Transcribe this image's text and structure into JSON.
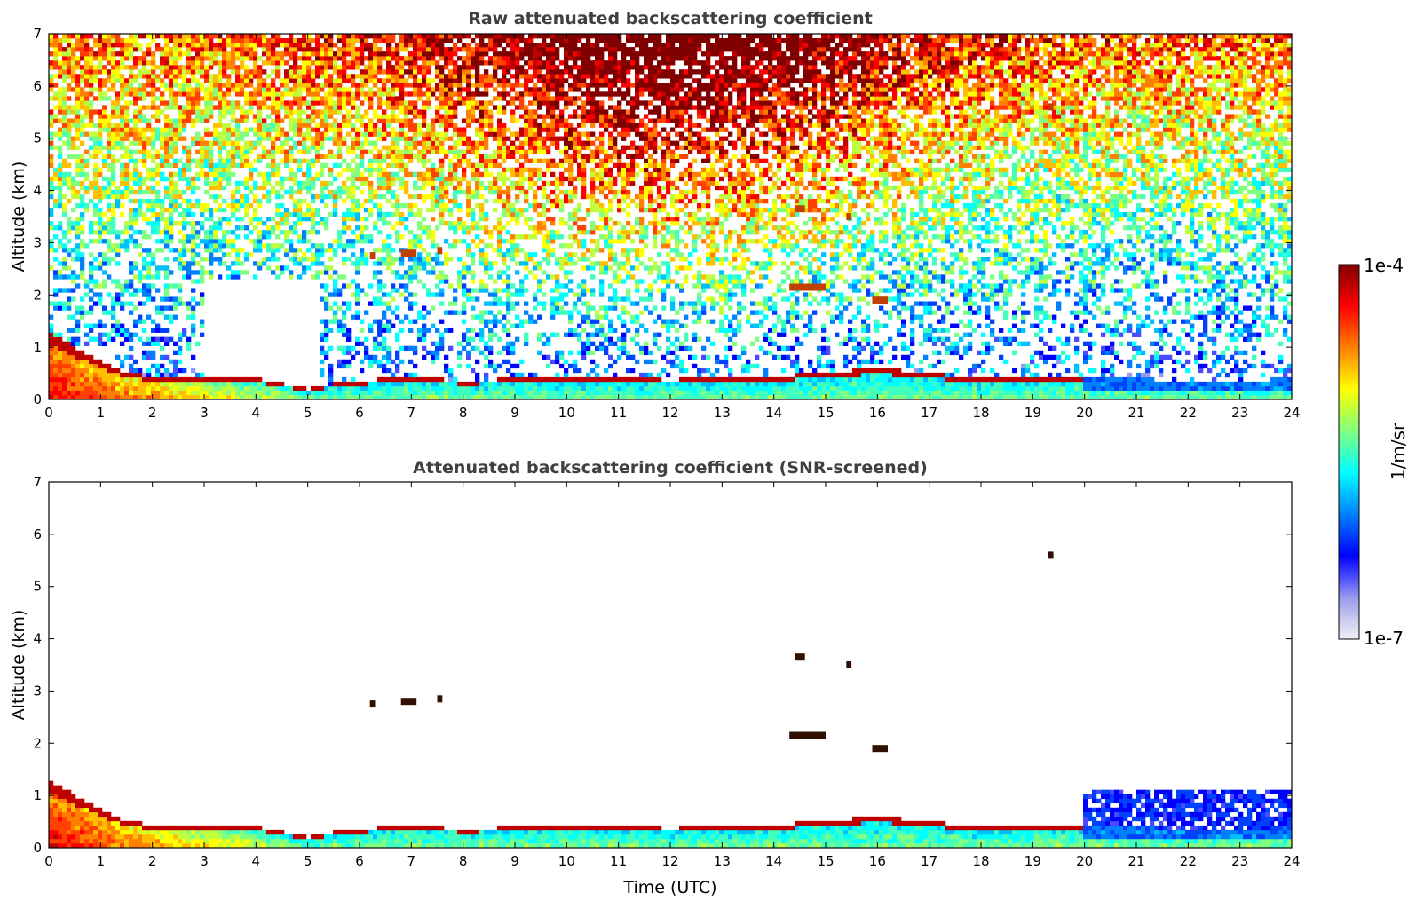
{
  "colors": {
    "colormap": [
      "#eeeef8",
      "#c8c8ee",
      "#9a9aee",
      "#4a4aff",
      "#0000ff",
      "#0040ff",
      "#0080ff",
      "#00bfff",
      "#00ffff",
      "#40ffbf",
      "#80ff80",
      "#bfff40",
      "#ffff00",
      "#ffbf00",
      "#ff8000",
      "#ff4000",
      "#ff0000",
      "#bf0000",
      "#800000"
    ],
    "tick": "#000000",
    "title": "#404040"
  },
  "colorbar": {
    "max_label": "1e-4",
    "min_label": "1e-7",
    "unit_label": "1/m/sr",
    "scale": "log"
  },
  "chart_data": [
    {
      "type": "heatmap",
      "title": "Raw attenuated backscattering coefficient",
      "xlabel": "",
      "ylabel": "Altitude (km)",
      "xlim": [
        0,
        24
      ],
      "ylim": [
        0,
        7
      ],
      "xticks": [
        "0",
        "1",
        "2",
        "3",
        "4",
        "5",
        "6",
        "7",
        "8",
        "9",
        "10",
        "11",
        "12",
        "13",
        "14",
        "15",
        "16",
        "17",
        "18",
        "19",
        "20",
        "21",
        "22",
        "23",
        "24"
      ],
      "yticks": [
        "0",
        "1",
        "2",
        "3",
        "4",
        "5",
        "6",
        "7"
      ],
      "boundary_layer_top_km": [
        [
          0,
          1.3
        ],
        [
          0.5,
          1.0
        ],
        [
          1,
          0.75
        ],
        [
          1.5,
          0.5
        ],
        [
          2,
          0.45
        ],
        [
          3,
          0.45
        ],
        [
          4,
          0.4
        ],
        [
          5,
          0.2
        ],
        [
          5.5,
          0.3
        ],
        [
          6,
          0.35
        ],
        [
          7,
          0.45
        ],
        [
          8,
          0.35
        ],
        [
          9,
          0.4
        ],
        [
          10,
          0.4
        ],
        [
          11,
          0.4
        ],
        [
          12,
          0.38
        ],
        [
          13,
          0.4
        ],
        [
          14,
          0.45
        ],
        [
          15,
          0.5
        ],
        [
          16,
          0.6
        ],
        [
          17,
          0.5
        ],
        [
          18,
          0.4
        ],
        [
          19,
          0.45
        ],
        [
          20,
          0.45
        ],
        [
          21,
          0.4
        ],
        [
          22,
          0.35
        ],
        [
          23,
          0.3
        ],
        [
          24,
          0.45
        ]
      ],
      "aerosol_layers": [
        {
          "x": [
            6.2,
            6.3
          ],
          "y": 2.75
        },
        {
          "x": [
            6.8,
            7.1
          ],
          "y": 2.8
        },
        {
          "x": [
            7.5,
            7.6
          ],
          "y": 2.85
        },
        {
          "x": [
            14.4,
            14.6
          ],
          "y": 3.65
        },
        {
          "x": [
            14.3,
            15.0
          ],
          "y": 2.15
        },
        {
          "x": [
            15.4,
            15.5
          ],
          "y": 3.5
        },
        {
          "x": [
            15.9,
            16.2
          ],
          "y": 1.9
        },
        {
          "x": [
            19.3,
            19.4
          ],
          "y": 5.6
        }
      ],
      "noise": "high"
    },
    {
      "type": "heatmap",
      "title": "Attenuated backscattering coefficient (SNR-screened)",
      "xlabel": "Time (UTC)",
      "ylabel": "Altitude (km)",
      "xlim": [
        0,
        24
      ],
      "ylim": [
        0,
        7
      ],
      "xticks": [
        "0",
        "1",
        "2",
        "3",
        "4",
        "5",
        "6",
        "7",
        "8",
        "9",
        "10",
        "11",
        "12",
        "13",
        "14",
        "15",
        "16",
        "17",
        "18",
        "19",
        "20",
        "21",
        "22",
        "23",
        "24"
      ],
      "yticks": [
        "0",
        "1",
        "2",
        "3",
        "4",
        "5",
        "6",
        "7"
      ],
      "boundary_layer_top_km": [
        [
          0,
          1.3
        ],
        [
          0.5,
          1.0
        ],
        [
          1,
          0.75
        ],
        [
          1.5,
          0.5
        ],
        [
          2,
          0.45
        ],
        [
          3,
          0.45
        ],
        [
          4,
          0.4
        ],
        [
          5,
          0.2
        ],
        [
          5.5,
          0.3
        ],
        [
          6,
          0.35
        ],
        [
          7,
          0.45
        ],
        [
          8,
          0.35
        ],
        [
          9,
          0.4
        ],
        [
          10,
          0.4
        ],
        [
          11,
          0.4
        ],
        [
          12,
          0.38
        ],
        [
          13,
          0.4
        ],
        [
          14,
          0.45
        ],
        [
          15,
          0.5
        ],
        [
          16,
          0.6
        ],
        [
          17,
          0.5
        ],
        [
          18,
          0.4
        ],
        [
          19,
          0.45
        ],
        [
          20,
          0.45
        ],
        [
          21,
          0.4
        ],
        [
          22,
          0.35
        ],
        [
          23,
          0.3
        ],
        [
          24,
          0.45
        ]
      ],
      "aerosol_layers": [
        {
          "x": [
            6.2,
            6.3
          ],
          "y": 2.75
        },
        {
          "x": [
            6.8,
            7.1
          ],
          "y": 2.8
        },
        {
          "x": [
            7.5,
            7.6
          ],
          "y": 2.85
        },
        {
          "x": [
            14.4,
            14.6
          ],
          "y": 3.65
        },
        {
          "x": [
            14.3,
            15.0
          ],
          "y": 2.15
        },
        {
          "x": [
            15.4,
            15.5
          ],
          "y": 3.5
        },
        {
          "x": [
            15.9,
            16.2
          ],
          "y": 1.9
        },
        {
          "x": [
            19.3,
            19.4
          ],
          "y": 5.6
        }
      ],
      "blue_layer": {
        "x": [
          20,
          24
        ],
        "y": [
          0.3,
          1.1
        ]
      },
      "noise": "screened"
    }
  ]
}
